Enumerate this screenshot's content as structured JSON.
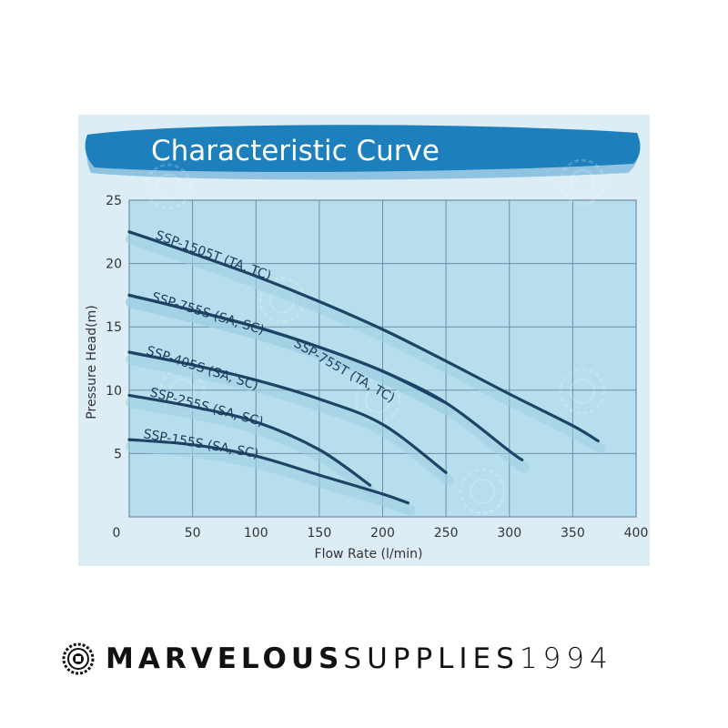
{
  "chart_data": {
    "type": "line",
    "title": "Characteristic Curve",
    "xlabel": "Flow Rate (l/min)",
    "ylabel": "Pressure Head(m)",
    "xlim": [
      0,
      400
    ],
    "ylim": [
      0,
      25
    ],
    "xticks": [
      0,
      50,
      100,
      150,
      200,
      250,
      300,
      350,
      400
    ],
    "yticks": [
      5,
      10,
      15,
      20,
      25
    ],
    "grid": true,
    "series": [
      {
        "name": "SSP-1505T (TA, TC)",
        "x": [
          0,
          50,
          100,
          150,
          200,
          250,
          300,
          350,
          370
        ],
        "y": [
          22.5,
          20.8,
          19.0,
          17.0,
          14.8,
          12.3,
          9.7,
          7.2,
          6.0
        ]
      },
      {
        "name": "SSP-755T (TA, TC)",
        "x": [
          0,
          50,
          100,
          150,
          200,
          250,
          300,
          310
        ],
        "y": [
          17.5,
          16.3,
          15.0,
          13.4,
          11.5,
          9.0,
          5.2,
          4.5
        ]
      },
      {
        "name": "SSP-755S (SA, SC)",
        "x": [
          0,
          50,
          100,
          150,
          200,
          250
        ],
        "y": [
          17.5,
          16.3,
          15.0,
          13.4,
          11.5,
          9.0
        ]
      },
      {
        "name": "SSP-405S (SA, SC)",
        "x": [
          0,
          50,
          100,
          150,
          200,
          250
        ],
        "y": [
          13.0,
          12.0,
          10.8,
          9.3,
          7.3,
          3.5
        ]
      },
      {
        "name": "SSP-255S (SA, SC)",
        "x": [
          0,
          50,
          100,
          150,
          190
        ],
        "y": [
          9.6,
          8.7,
          7.5,
          5.3,
          2.5
        ]
      },
      {
        "name": "SSP-155S (SA, SC)",
        "x": [
          0,
          50,
          100,
          150,
          200,
          220
        ],
        "y": [
          6.1,
          5.7,
          4.8,
          3.3,
          1.8,
          1.1
        ]
      }
    ]
  },
  "brand": {
    "bold": "MARVELOUS",
    "light": "SUPPLIES",
    "year": "1994",
    "watermark": "MARVELOUS SUPPLIES"
  },
  "colors": {
    "panel": "#dcedf5",
    "plot": "#b7deec",
    "grid": "#6e8ea8",
    "curve": "#1d4466",
    "band": "#9fd0e4",
    "title_banner": "#1d7fbb"
  }
}
